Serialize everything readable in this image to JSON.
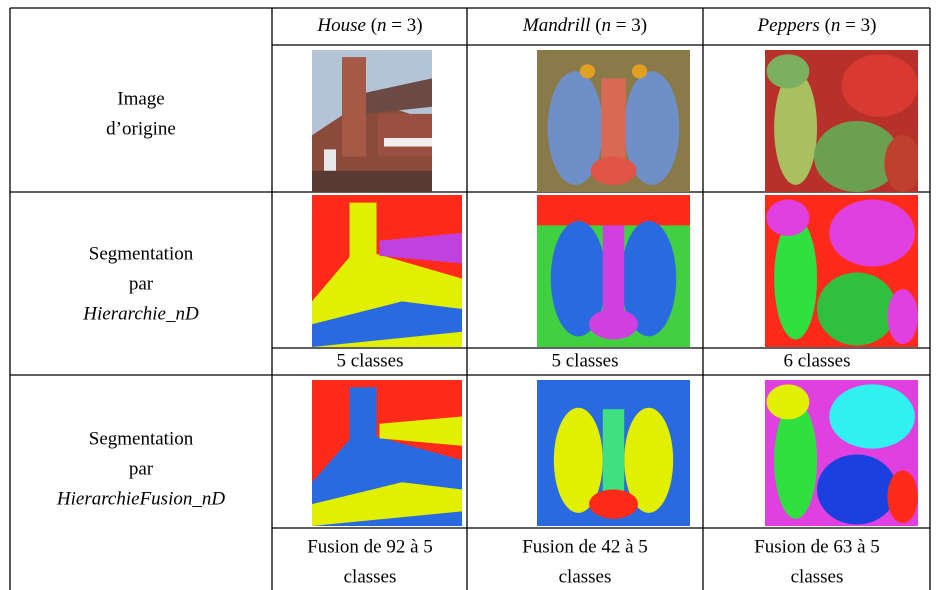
{
  "table": {
    "headers": [
      {
        "name": "House",
        "open": "(",
        "var": "n",
        "rest": "= 3)"
      },
      {
        "name": "Mandrill",
        "open": "(",
        "var": "n",
        "rest": "= 3)"
      },
      {
        "name": "Peppers",
        "open": "(",
        "var": "n",
        "rest": "= 3)"
      }
    ],
    "rows": [
      {
        "label": [
          "Image",
          "d’origine"
        ]
      },
      {
        "label": [
          "Segmentation",
          "par",
          "Hierarchie_nD"
        ],
        "captions": [
          [
            "5 classes"
          ],
          [
            "5 classes"
          ],
          [
            "6 classes"
          ]
        ]
      },
      {
        "label": [
          "Segmentation",
          "par",
          "HierarchieFusion_nD"
        ],
        "captions": [
          [
            "Fusion de 92 à 5",
            "classes"
          ],
          [
            "Fusion de 42 à 5",
            "classes"
          ],
          [
            "Fusion de 63 à 5",
            "classes"
          ]
        ]
      }
    ]
  }
}
